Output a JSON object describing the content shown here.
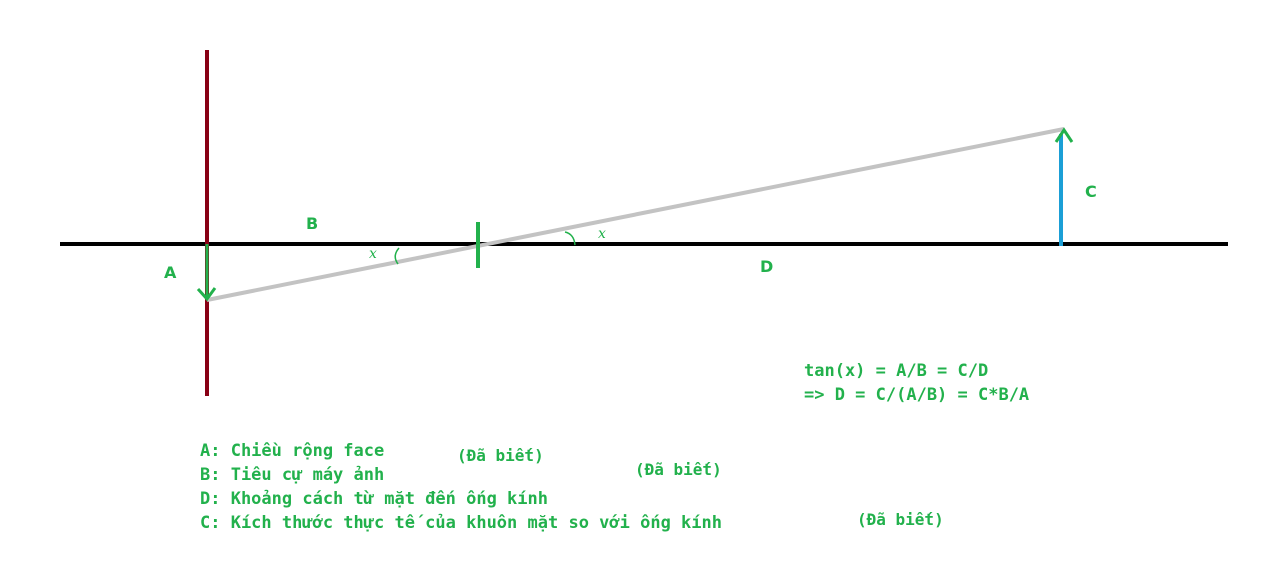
{
  "labels": {
    "a": "A",
    "b": "B",
    "c": "C",
    "d": "D",
    "angle_left": "x",
    "angle_right": "x"
  },
  "formula": {
    "line1": "tan(x) = A/B = C/D",
    "line2": "=> D = C/(A/B) = C*B/A"
  },
  "legend": [
    "A: Chiều rộng face",
    "B: Tiêu cự máy ảnh",
    "D: Khoảng cách từ mặt đến ống kính",
    "C: Kích thước thực tế của khuôn mặt so với ống kính"
  ],
  "notes": [
    "(Đã biết)",
    "(Đã biết)",
    "(Đã biết)"
  ],
  "colors": {
    "axis": "#000000",
    "sensor": "#880015",
    "ray": "#c3c3c3",
    "lens": "#22b14c",
    "object": "#1b9fd6",
    "text": "#22b14c"
  }
}
